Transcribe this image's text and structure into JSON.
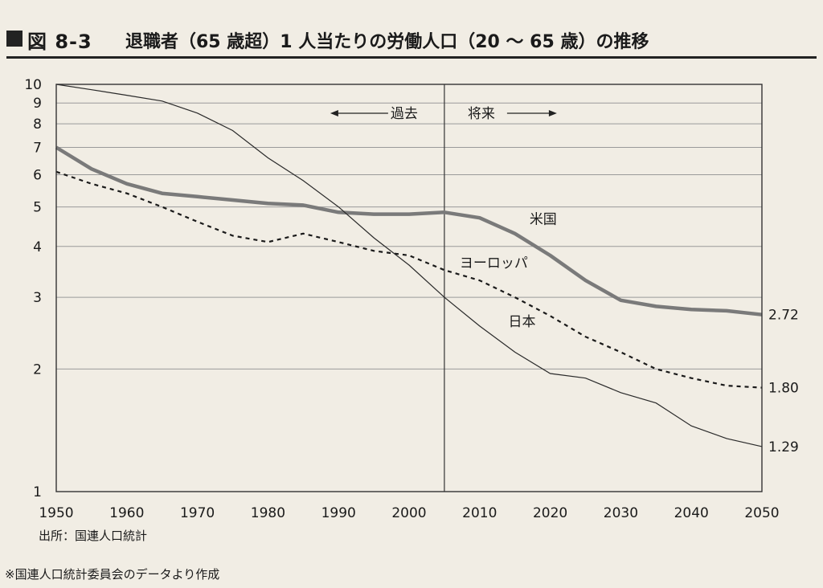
{
  "header": {
    "figure_number": "図 8-3",
    "title": "退職者（65 歳超）1 人当たりの労働人口（20 ～ 65 歳）の推移"
  },
  "footer": {
    "source": "出所：国連人口統計",
    "note": "※国連人口統計委員会のデータより作成"
  },
  "chart_data": {
    "type": "line",
    "title": "退職者（65 歳超）1 人当たりの労働人口（20 ～ 65 歳）の推移",
    "xlabel": "",
    "ylabel": "",
    "xlim": [
      1950,
      2050
    ],
    "ylim": [
      1,
      10
    ],
    "yscale": "log",
    "grid": "horizontal",
    "x_ticks": [
      1950,
      1960,
      1970,
      1980,
      1990,
      2000,
      2010,
      2020,
      2030,
      2040,
      2050
    ],
    "y_ticks": [
      1,
      2,
      3,
      4,
      5,
      6,
      7,
      8,
      9,
      10
    ],
    "divider": {
      "x": 2005,
      "left_label": "過去",
      "right_label": "将来"
    },
    "colors": {
      "米国": "#7a7a7a",
      "日本": "#2a2a2a",
      "ヨーロッパ": "#1a1a1a",
      "grid": "#9a9a9a"
    },
    "series": [
      {
        "name": "米国",
        "style": "thick-gray",
        "end_label": "2.72",
        "x": [
          1950,
          1955,
          1960,
          1965,
          1970,
          1975,
          1980,
          1985,
          1990,
          1995,
          2000,
          2005,
          2010,
          2015,
          2020,
          2025,
          2030,
          2035,
          2040,
          2045,
          2050
        ],
        "values": [
          7.0,
          6.2,
          5.7,
          5.4,
          5.3,
          5.2,
          5.1,
          5.05,
          4.85,
          4.8,
          4.8,
          4.85,
          4.7,
          4.3,
          3.8,
          3.3,
          2.95,
          2.85,
          2.8,
          2.78,
          2.72
        ]
      },
      {
        "name": "ヨーロッパ",
        "style": "dashed",
        "end_label": "1.80",
        "x": [
          1950,
          1955,
          1960,
          1965,
          1970,
          1975,
          1980,
          1985,
          1990,
          1995,
          2000,
          2005,
          2010,
          2015,
          2020,
          2025,
          2030,
          2035,
          2040,
          2045,
          2050
        ],
        "values": [
          6.1,
          5.7,
          5.4,
          5.0,
          4.6,
          4.25,
          4.1,
          4.3,
          4.1,
          3.9,
          3.8,
          3.5,
          3.3,
          3.0,
          2.7,
          2.4,
          2.2,
          2.0,
          1.9,
          1.82,
          1.8
        ]
      },
      {
        "name": "日本",
        "style": "thin-solid",
        "end_label": "1.29",
        "x": [
          1950,
          1955,
          1960,
          1965,
          1970,
          1975,
          1980,
          1985,
          1990,
          1995,
          2000,
          2005,
          2010,
          2015,
          2020,
          2025,
          2030,
          2035,
          2040,
          2045,
          2050
        ],
        "values": [
          10.0,
          9.7,
          9.4,
          9.1,
          8.5,
          7.7,
          6.6,
          5.8,
          5.0,
          4.2,
          3.6,
          3.0,
          2.55,
          2.2,
          1.95,
          1.9,
          1.75,
          1.65,
          1.45,
          1.35,
          1.29
        ]
      }
    ]
  }
}
